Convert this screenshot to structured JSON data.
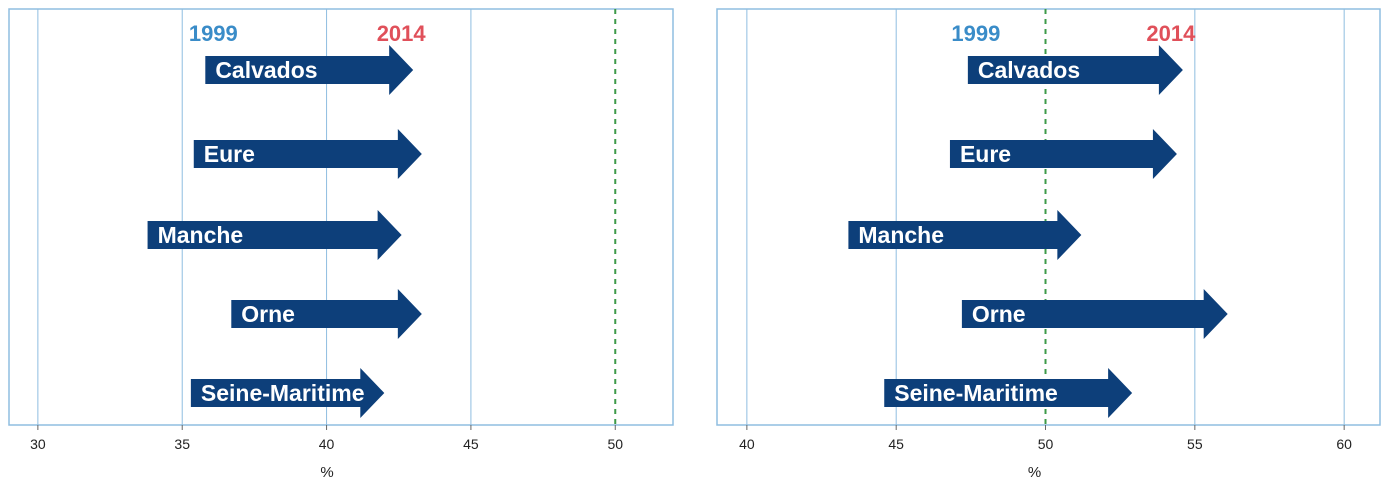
{
  "legend": {
    "start_label": "1999",
    "end_label": "2014",
    "start_color": "#3a8cc8",
    "end_color": "#e0505a"
  },
  "arrow_color": "#0d3f7a",
  "chart_data": [
    {
      "type": "arrow-range",
      "xlabel": "%",
      "xlim": [
        29,
        52
      ],
      "xticks": [
        30,
        35,
        40,
        45,
        50
      ],
      "reference_line": 50,
      "grid": true,
      "categories": [
        "Calvados",
        "Eure",
        "Manche",
        "Orne",
        "Seine-Maritime"
      ],
      "series": [
        {
          "name": "1999",
          "values": [
            35.8,
            35.4,
            33.8,
            36.7,
            35.3
          ]
        },
        {
          "name": "2014",
          "values": [
            43.0,
            43.3,
            42.6,
            43.3,
            42.0
          ]
        }
      ]
    },
    {
      "type": "arrow-range",
      "xlabel": "%",
      "xlim": [
        39,
        61.2
      ],
      "xticks": [
        40,
        45,
        50,
        55,
        60
      ],
      "reference_line": 50,
      "grid": true,
      "categories": [
        "Calvados",
        "Eure",
        "Manche",
        "Orne",
        "Seine-Maritime"
      ],
      "series": [
        {
          "name": "1999",
          "values": [
            47.4,
            46.8,
            43.4,
            47.2,
            44.6
          ]
        },
        {
          "name": "2014",
          "values": [
            54.6,
            54.4,
            51.2,
            56.1,
            52.9
          ]
        }
      ]
    }
  ]
}
